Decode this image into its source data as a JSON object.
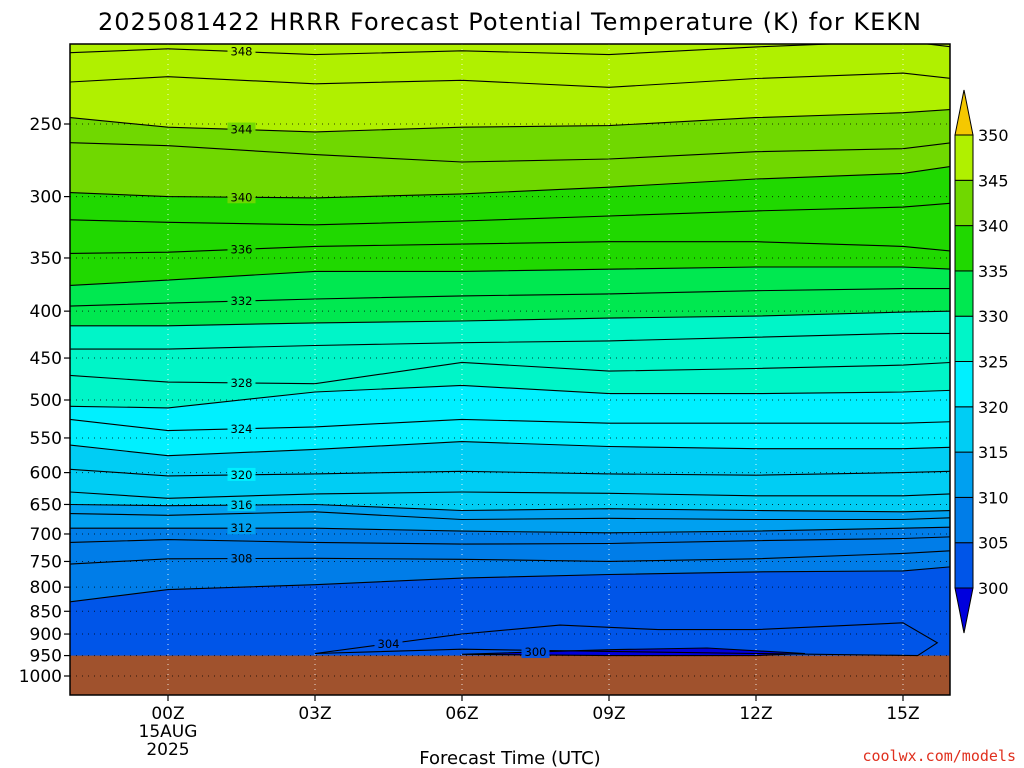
{
  "chart_data": {
    "type": "heatmap",
    "title": "2025081422 HRRR Forecast Potential Temperature (K) for KEKN",
    "xlabel": "Forecast Time (UTC)",
    "ylabel": "",
    "x_ticks": [
      {
        "hours": 0,
        "label": "00Z",
        "sub": [
          "15AUG",
          "2025"
        ]
      },
      {
        "hours": 3,
        "label": "03Z",
        "sub": []
      },
      {
        "hours": 6,
        "label": "06Z",
        "sub": []
      },
      {
        "hours": 9,
        "label": "09Z",
        "sub": []
      },
      {
        "hours": 12,
        "label": "12Z",
        "sub": []
      },
      {
        "hours": 15,
        "label": "15Z",
        "sub": []
      }
    ],
    "xlim_hours": [
      -2,
      16
    ],
    "y_ticks": [
      250,
      300,
      350,
      400,
      450,
      500,
      550,
      600,
      650,
      700,
      750,
      800,
      850,
      900,
      950,
      1000
    ],
    "y_tick_labels": [
      "250",
      "300",
      "350",
      "400",
      "450",
      "500",
      "550",
      "600",
      "650",
      "700",
      "750",
      "800",
      "850",
      "900",
      "950",
      "1000"
    ],
    "ylim_hPa": [
      200,
      1050
    ],
    "y_scale": "log",
    "y_inverted": true,
    "grid": "dotted",
    "colorbar": {
      "levels": [
        300,
        305,
        310,
        315,
        320,
        325,
        330,
        335,
        340,
        345,
        350
      ],
      "labels": [
        "300",
        "305",
        "310",
        "315",
        "320",
        "325",
        "330",
        "335",
        "340",
        "345",
        "350"
      ],
      "colors": [
        "#0000dd",
        "#0055e8",
        "#007de8",
        "#00a0f0",
        "#00cdf4",
        "#00f0ff",
        "#00f5c8",
        "#00e850",
        "#20d800",
        "#70d800",
        "#b0f000",
        "#e8e800",
        "#f5c800"
      ],
      "extend": "both"
    },
    "ground_color": "#a0522d",
    "ground_level_hPa": 950,
    "series": [
      {
        "name": "348",
        "hours": [
          -2,
          0,
          3,
          6,
          9,
          12,
          15,
          16
        ],
        "values": [
          209,
          207,
          210,
          208,
          210,
          206,
          203,
          206
        ]
      },
      {
        "name": "",
        "hours": [
          -2,
          0,
          3,
          6,
          9,
          12,
          15,
          16
        ],
        "values": [
          225,
          222,
          226,
          224,
          228,
          223,
          220,
          223
        ]
      },
      {
        "name": "344",
        "hours": [
          -2,
          0,
          3,
          6,
          9,
          12,
          15,
          16
        ],
        "values": [
          246,
          252,
          255,
          252,
          251,
          246,
          243,
          241
        ]
      },
      {
        "name": "",
        "hours": [
          -2,
          0,
          3,
          6,
          9,
          12,
          15,
          16
        ],
        "values": [
          262,
          264,
          270,
          275,
          273,
          268,
          266,
          262
        ]
      },
      {
        "name": "340",
        "hours": [
          -2,
          0,
          3,
          6,
          9,
          12,
          15,
          16
        ],
        "values": [
          297,
          300,
          301,
          298,
          293,
          287,
          283,
          278
        ]
      },
      {
        "name": "",
        "hours": [
          -2,
          0,
          3,
          6,
          9,
          12,
          15,
          16
        ],
        "values": [
          318,
          320,
          322,
          319,
          315,
          311,
          308,
          305
        ]
      },
      {
        "name": "336",
        "hours": [
          -2,
          0,
          3,
          6,
          9,
          12,
          15,
          16
        ],
        "values": [
          346,
          345,
          340,
          338,
          336,
          336,
          340,
          344
        ]
      },
      {
        "name": "",
        "hours": [
          -2,
          0,
          3,
          6,
          9,
          12,
          15,
          16
        ],
        "values": [
          375,
          370,
          362,
          362,
          360,
          358,
          358,
          360
        ]
      },
      {
        "name": "332",
        "hours": [
          -2,
          0,
          3,
          6,
          9,
          12,
          15,
          16
        ],
        "values": [
          395,
          392,
          388,
          385,
          383,
          380,
          378,
          378
        ]
      },
      {
        "name": "",
        "hours": [
          -2,
          0,
          3,
          6,
          9,
          12,
          15,
          16
        ],
        "values": [
          415,
          415,
          412,
          410,
          407,
          405,
          401,
          400
        ]
      },
      {
        "name": "",
        "hours": [
          -2,
          0,
          3,
          6,
          9,
          12,
          15,
          16
        ],
        "values": [
          440,
          440,
          436,
          433,
          431,
          427,
          423,
          423
        ]
      },
      {
        "name": "328",
        "hours": [
          -2,
          0,
          3,
          6,
          9,
          12,
          15,
          16
        ],
        "values": [
          470,
          478,
          480,
          455,
          465,
          462,
          458,
          455
        ]
      },
      {
        "name": "",
        "hours": [
          -2,
          0,
          3,
          6,
          9,
          12,
          15,
          16
        ],
        "values": [
          508,
          510,
          490,
          482,
          492,
          492,
          490,
          488
        ]
      },
      {
        "name": "324",
        "hours": [
          -2,
          0,
          3,
          6,
          9,
          12,
          15,
          16
        ],
        "values": [
          525,
          540,
          535,
          525,
          530,
          530,
          530,
          528
        ]
      },
      {
        "name": "",
        "hours": [
          -2,
          0,
          3,
          6,
          9,
          12,
          15,
          16
        ],
        "values": [
          560,
          575,
          566,
          555,
          562,
          565,
          565,
          563
        ]
      },
      {
        "name": "320",
        "hours": [
          -2,
          0,
          3,
          6,
          9,
          12,
          15,
          16
        ],
        "values": [
          595,
          605,
          602,
          598,
          602,
          604,
          600,
          598
        ]
      },
      {
        "name": "",
        "hours": [
          -2,
          0,
          3,
          6,
          9,
          12,
          15,
          16
        ],
        "values": [
          630,
          640,
          633,
          630,
          632,
          636,
          636,
          633
        ]
      },
      {
        "name": "316",
        "hours": [
          -2,
          0,
          3,
          6,
          9,
          12,
          15,
          16
        ],
        "values": [
          650,
          652,
          650,
          660,
          657,
          660,
          662,
          660
        ]
      },
      {
        "name": "",
        "hours": [
          -2,
          0,
          3,
          6,
          9,
          12,
          15,
          16
        ],
        "values": [
          665,
          668,
          662,
          675,
          673,
          675,
          675,
          672
        ]
      },
      {
        "name": "312",
        "hours": [
          -2,
          0,
          3,
          6,
          9,
          12,
          15,
          16
        ],
        "values": [
          690,
          690,
          690,
          695,
          698,
          695,
          690,
          688
        ]
      },
      {
        "name": "",
        "hours": [
          -2,
          0,
          3,
          6,
          9,
          12,
          15,
          16
        ],
        "values": [
          715,
          710,
          715,
          718,
          717,
          712,
          708,
          705
        ]
      },
      {
        "name": "308",
        "hours": [
          -2,
          0,
          3,
          6,
          9,
          12,
          15,
          16
        ],
        "values": [
          755,
          745,
          744,
          746,
          750,
          745,
          735,
          730
        ]
      },
      {
        "name": "",
        "hours": [
          -2,
          0,
          3,
          6,
          9,
          12,
          15,
          16
        ],
        "values": [
          830,
          805,
          795,
          782,
          775,
          770,
          768,
          760
        ]
      },
      {
        "name": "304",
        "hours": [
          3,
          6,
          8,
          10,
          12,
          15,
          15.7,
          15.3,
          12,
          9,
          6,
          3
        ],
        "values": [
          945,
          900,
          880,
          890,
          890,
          875,
          920,
          950,
          945,
          940,
          935,
          945
        ]
      },
      {
        "name": "300",
        "hours": [
          6,
          9,
          11,
          13,
          12,
          9,
          6
        ],
        "values": [
          947,
          936,
          932,
          945,
          950,
          950,
          947
        ]
      }
    ]
  },
  "credit": "coolwx.com/models"
}
